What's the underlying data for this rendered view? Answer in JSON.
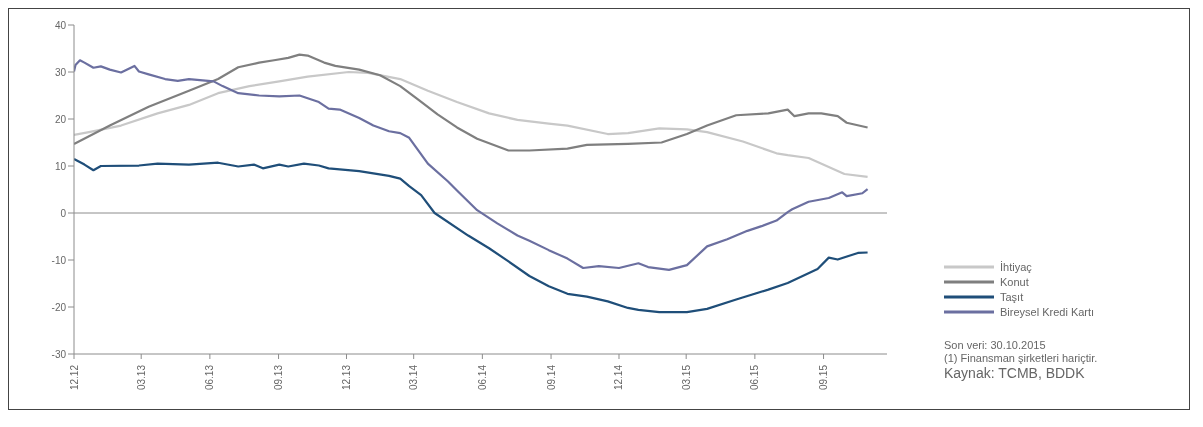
{
  "chart_data": {
    "type": "line",
    "xlim": [
      "2012-12-01",
      "2015-11-25"
    ],
    "xticks": [
      {
        "value": "2012-12",
        "label": "12.12"
      },
      {
        "value": "2013-03",
        "label": "03.13"
      },
      {
        "value": "2013-06",
        "label": "06.13"
      },
      {
        "value": "2013-09",
        "label": "09.13"
      },
      {
        "value": "2013-12",
        "label": "12.13"
      },
      {
        "value": "2014-03",
        "label": "03.14"
      },
      {
        "value": "2014-06",
        "label": "06.14"
      },
      {
        "value": "2014-09",
        "label": "09.14"
      },
      {
        "value": "2014-12",
        "label": "12.14"
      },
      {
        "value": "2015-03",
        "label": "03.15"
      },
      {
        "value": "2015-06",
        "label": "06.15"
      },
      {
        "value": "2015-09",
        "label": "09.15"
      }
    ],
    "ylim": [
      -30,
      40
    ],
    "yticks": [
      -30,
      -20,
      -10,
      0,
      10,
      20,
      30,
      40
    ],
    "grid": false,
    "legend": "right",
    "marker": "none",
    "line_style": "solid",
    "ref_lines": [
      {
        "axis": "y",
        "value": 0,
        "color": "#8c8c8c"
      }
    ],
    "annotations": [
      "Son veri: 30.10.2015",
      "(1) Finansman şirketleri hariçtir.",
      "Kaynak: TCMB, BDDK"
    ],
    "series": [
      {
        "name": "İhtiyaç",
        "color": "#c8c8c8",
        "x": [
          "2012-12-01",
          "2012-12-21",
          "2013-02-02",
          "2013-03-23",
          "2013-05-04",
          "2013-06-12",
          "2013-07-24",
          "2013-09-02",
          "2013-10-10",
          "2013-12-04",
          "2013-12-30",
          "2014-02-11",
          "2014-03-20",
          "2014-04-28",
          "2014-06-10",
          "2014-07-18",
          "2014-08-29",
          "2014-09-23",
          "2014-11-16",
          "2014-12-13",
          "2015-01-24",
          "2015-03-02",
          "2015-03-29",
          "2015-05-16",
          "2015-06-30",
          "2015-07-15",
          "2015-08-12",
          "2015-09-29",
          "2015-10-30"
        ],
        "values": [
          16.6,
          17.2,
          18.6,
          21.2,
          23,
          25.5,
          27,
          28,
          29,
          30,
          29.8,
          28.5,
          26,
          23.6,
          21.2,
          19.8,
          19,
          18.6,
          16.8,
          17,
          18,
          17.8,
          17.2,
          15.2,
          12.7,
          12.3,
          11.7,
          8.3,
          7.7
        ]
      },
      {
        "name": "Konut",
        "color": "#7f7f7f",
        "x": [
          "2012-12-01",
          "2013-01-18",
          "2013-03-11",
          "2013-05-04",
          "2013-06-12",
          "2013-07-09",
          "2013-08-06",
          "2013-08-26",
          "2013-09-14",
          "2013-09-29",
          "2013-10-10",
          "2013-11-01",
          "2013-11-16",
          "2013-12-18",
          "2014-01-15",
          "2014-02-11",
          "2014-03-08",
          "2014-04-02",
          "2014-04-28",
          "2014-05-25",
          "2014-07-06",
          "2014-08-03",
          "2014-09-23",
          "2014-10-19",
          "2014-12-13",
          "2015-01-27",
          "2015-03-02",
          "2015-03-29",
          "2015-05-07",
          "2015-06-19",
          "2015-07-15",
          "2015-07-24",
          "2015-08-12",
          "2015-08-29",
          "2015-09-20",
          "2015-10-02",
          "2015-10-30"
        ],
        "values": [
          14.7,
          18.6,
          22.6,
          26,
          28.5,
          31,
          32,
          32.5,
          33,
          33.7,
          33.5,
          32,
          31.3,
          30.5,
          29.3,
          27,
          24,
          21,
          18.2,
          15.8,
          13.3,
          13.3,
          13.7,
          14.5,
          14.7,
          15,
          16.8,
          18.6,
          20.8,
          21.2,
          22,
          20.6,
          21.2,
          21.2,
          20.6,
          19.2,
          18.2
        ]
      },
      {
        "name": "Taşıt",
        "color": "#1f4e79",
        "x": [
          "2012-12-01",
          "2012-12-15",
          "2012-12-27",
          "2013-01-06",
          "2013-02-26",
          "2013-03-23",
          "2013-05-04",
          "2013-06-12",
          "2013-07-09",
          "2013-07-30",
          "2013-08-11",
          "2013-09-02",
          "2013-09-14",
          "2013-10-05",
          "2013-10-25",
          "2013-11-07",
          "2013-12-18",
          "2014-01-27",
          "2014-02-11",
          "2014-02-23",
          "2014-03-11",
          "2014-03-29",
          "2014-05-13",
          "2014-06-10",
          "2014-07-06",
          "2014-08-03",
          "2014-08-29",
          "2014-09-23",
          "2014-10-19",
          "2014-11-16",
          "2014-12-13",
          "2014-12-27",
          "2015-01-24",
          "2015-03-02",
          "2015-03-29",
          "2015-05-07",
          "2015-06-19",
          "2015-07-15",
          "2015-08-24",
          "2015-09-08",
          "2015-09-20",
          "2015-10-17",
          "2015-10-30"
        ],
        "values": [
          11.5,
          10.3,
          9.1,
          10,
          10.1,
          10.5,
          10.3,
          10.7,
          9.9,
          10.3,
          9.5,
          10.3,
          9.9,
          10.5,
          10.1,
          9.5,
          8.9,
          7.9,
          7.3,
          5.7,
          3.8,
          0,
          -4.8,
          -7.5,
          -10.3,
          -13.4,
          -15.6,
          -17.2,
          -17.8,
          -18.8,
          -20.2,
          -20.6,
          -21.1,
          -21.1,
          -20.4,
          -18.4,
          -16.3,
          -14.9,
          -11.9,
          -9.5,
          -9.9,
          -8.5,
          -8.4
        ]
      },
      {
        "name": "Bireysel Kredi Kartı",
        "color": "#6b6fa0",
        "x": [
          "2012-12-01",
          "2012-12-03",
          "2012-12-09",
          "2012-12-15",
          "2012-12-27",
          "2013-01-06",
          "2013-01-18",
          "2013-02-02",
          "2013-02-20",
          "2013-02-26",
          "2013-03-11",
          "2013-04-02",
          "2013-04-19",
          "2013-05-04",
          "2013-06-06",
          "2013-06-18",
          "2013-07-09",
          "2013-08-06",
          "2013-09-02",
          "2013-09-29",
          "2013-10-25",
          "2013-11-07",
          "2013-11-22",
          "2013-12-18",
          "2014-01-06",
          "2014-01-27",
          "2014-02-11",
          "2014-02-23",
          "2014-03-20",
          "2014-04-16",
          "2014-04-28",
          "2014-05-25",
          "2014-06-21",
          "2014-07-18",
          "2014-08-03",
          "2014-08-29",
          "2014-09-23",
          "2014-10-14",
          "2014-11-04",
          "2014-12-01",
          "2014-12-27",
          "2015-01-09",
          "2015-02-06",
          "2015-03-02",
          "2015-03-29",
          "2015-04-25",
          "2015-05-22",
          "2015-06-10",
          "2015-06-30",
          "2015-07-15",
          "2015-07-21",
          "2015-08-12",
          "2015-09-08",
          "2015-09-26",
          "2015-10-02",
          "2015-10-23",
          "2015-10-30"
        ],
        "values": [
          30.1,
          31.5,
          32.5,
          32,
          30.9,
          31.2,
          30.5,
          29.9,
          31.3,
          30.1,
          29.5,
          28.5,
          28.1,
          28.5,
          28,
          27,
          25.5,
          25,
          24.8,
          25,
          23.6,
          22.2,
          22,
          20.2,
          18.6,
          17.4,
          17,
          16,
          10.5,
          6.7,
          4.8,
          0.6,
          -2.2,
          -4.8,
          -5.9,
          -7.9,
          -9.7,
          -11.7,
          -11.3,
          -11.7,
          -10.7,
          -11.5,
          -12.1,
          -11.1,
          -7.1,
          -5.6,
          -3.8,
          -2.8,
          -1.6,
          0.2,
          0.8,
          2.4,
          3.2,
          4.4,
          3.6,
          4.2,
          5.1
        ]
      }
    ]
  }
}
